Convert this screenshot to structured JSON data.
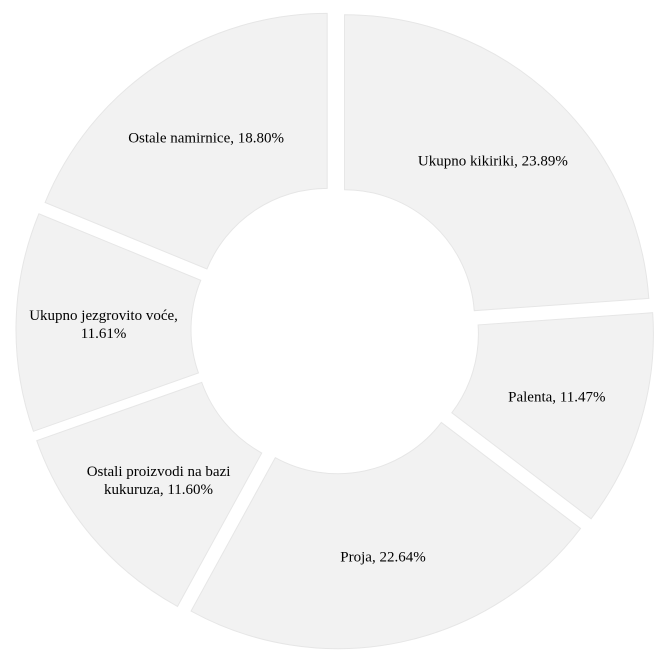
{
  "chart_data": {
    "type": "donut",
    "values": [
      23.89,
      11.47,
      22.64,
      11.6,
      11.61,
      18.8
    ],
    "value_labels": [
      "Ukupno kikiriki, 23.89%",
      "Palenta, 11.47%",
      "Proja, 22.64%",
      "Ostali proizvodi na bazi\nkukuruza,  11.60%",
      "Ukupno jezgrovito voće,\n11.61%",
      "Ostale namirnice, 18.80%"
    ],
    "color": "#f2f2f2"
  }
}
